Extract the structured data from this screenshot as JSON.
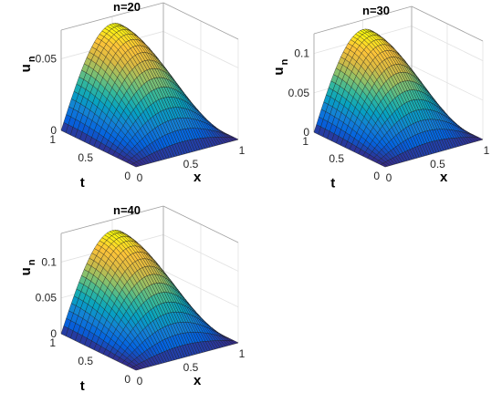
{
  "chart_data": [
    {
      "type": "surface",
      "title": "n=20",
      "xlabel": "x",
      "ylabel": "t",
      "zlabel": "u",
      "zlabel_sub": "n",
      "xlim": [
        0,
        1
      ],
      "ylim": [
        0,
        1
      ],
      "zlim": [
        0,
        0.07
      ],
      "x_ticks": [
        "0",
        "0.5",
        "1"
      ],
      "y_ticks": [
        "0",
        "0.5",
        "1"
      ],
      "z_ticks": [
        "0",
        "0.05"
      ],
      "z_tick_values": [
        0,
        0.05
      ],
      "peak": 0.065,
      "colormap": "parula",
      "contour_projection": true
    },
    {
      "type": "surface",
      "title": "n=30",
      "xlabel": "x",
      "ylabel": "t",
      "zlabel": "u",
      "zlabel_sub": "n",
      "xlim": [
        0,
        1
      ],
      "ylim": [
        0,
        1
      ],
      "zlim": [
        0,
        0.125
      ],
      "x_ticks": [
        "0",
        "0.5",
        "1"
      ],
      "y_ticks": [
        "0",
        "0.5",
        "1"
      ],
      "z_ticks": [
        "0",
        "0.05",
        "0.1"
      ],
      "z_tick_values": [
        0,
        0.05,
        0.1
      ],
      "peak": 0.113,
      "colormap": "parula",
      "contour_projection": true
    },
    {
      "type": "surface",
      "title": "n=40",
      "xlabel": "x",
      "ylabel": "t",
      "zlabel": "u",
      "zlabel_sub": "n",
      "xlim": [
        0,
        1
      ],
      "ylim": [
        0,
        1
      ],
      "zlim": [
        0,
        0.14
      ],
      "x_ticks": [
        "0",
        "0.5",
        "1"
      ],
      "y_ticks": [
        "0",
        "0.5",
        "1"
      ],
      "z_ticks": [
        "0",
        "0.05",
        "0.1"
      ],
      "z_tick_values": [
        0,
        0.05,
        0.1
      ],
      "peak": 0.125,
      "colormap": "parula",
      "contour_projection": true
    }
  ]
}
